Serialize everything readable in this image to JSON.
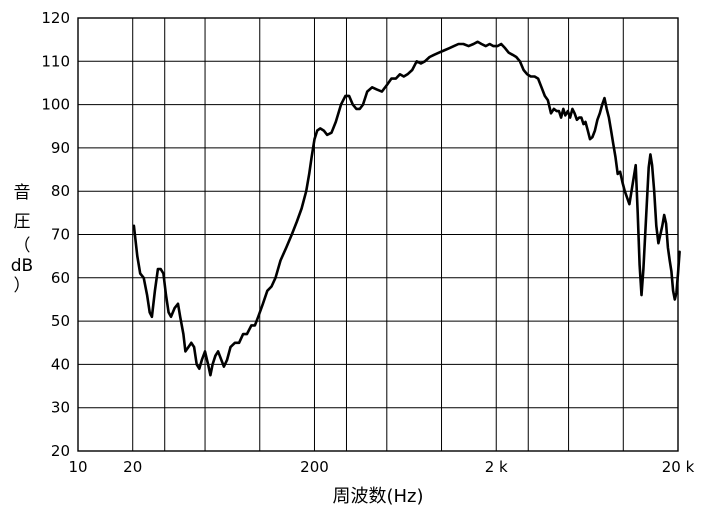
{
  "chart_data": {
    "type": "line",
    "title": "",
    "xlabel": "周波数(Hz)",
    "ylabel_chars": [
      "音",
      "圧",
      "（",
      "dB",
      "）"
    ],
    "x_scale": "log",
    "xlim": [
      10,
      20000
    ],
    "ylim": [
      20,
      120
    ],
    "grid": true,
    "y_ticks": [
      "20",
      "30",
      "40",
      "50",
      "60",
      "70",
      "80",
      "90",
      "100",
      "110",
      "120"
    ],
    "x_tick_labels": [
      {
        "value": 10,
        "label": "10"
      },
      {
        "value": 20,
        "label": "20"
      },
      {
        "value": 200,
        "label": "200"
      },
      {
        "value": 2000,
        "label": "2 k"
      },
      {
        "value": 20000,
        "label": "20 k"
      }
    ],
    "x_gridlines": [
      20,
      30,
      50,
      100,
      200,
      300,
      500,
      1000,
      2000,
      3000,
      5000,
      10000
    ],
    "series": [
      {
        "name": "",
        "color": "#000000",
        "points": [
          [
            20.3,
            72
          ],
          [
            21.2,
            65
          ],
          [
            22,
            61
          ],
          [
            23,
            60
          ],
          [
            24,
            56
          ],
          [
            24.8,
            52
          ],
          [
            25.5,
            51
          ],
          [
            26.5,
            57
          ],
          [
            27.5,
            62
          ],
          [
            28.5,
            62
          ],
          [
            29.5,
            61
          ],
          [
            30.5,
            56
          ],
          [
            31.5,
            52
          ],
          [
            32.5,
            51
          ],
          [
            34,
            53
          ],
          [
            35.5,
            54
          ],
          [
            36.5,
            51
          ],
          [
            38,
            47
          ],
          [
            39,
            43
          ],
          [
            40.5,
            44
          ],
          [
            42,
            45
          ],
          [
            43.5,
            44
          ],
          [
            45,
            40
          ],
          [
            46.5,
            39
          ],
          [
            48,
            41
          ],
          [
            50,
            43
          ],
          [
            52,
            40
          ],
          [
            53.5,
            37.5
          ],
          [
            55,
            40
          ],
          [
            57,
            42
          ],
          [
            59,
            43
          ],
          [
            61.5,
            41
          ],
          [
            63.5,
            39.5
          ],
          [
            66,
            41
          ],
          [
            69,
            44
          ],
          [
            73,
            45
          ],
          [
            77,
            45
          ],
          [
            81,
            47
          ],
          [
            85,
            47
          ],
          [
            90,
            49
          ],
          [
            94,
            49
          ],
          [
            98,
            51
          ],
          [
            104,
            54
          ],
          [
            110,
            57
          ],
          [
            116,
            58
          ],
          [
            122,
            60
          ],
          [
            130,
            64
          ],
          [
            140,
            67
          ],
          [
            150,
            70
          ],
          [
            160,
            73
          ],
          [
            170,
            76
          ],
          [
            180,
            80
          ],
          [
            187,
            84
          ],
          [
            193,
            88
          ],
          [
            200,
            92
          ],
          [
            207,
            94
          ],
          [
            215,
            94.5
          ],
          [
            225,
            94
          ],
          [
            235,
            93
          ],
          [
            248,
            93.5
          ],
          [
            262,
            96
          ],
          [
            280,
            100
          ],
          [
            296,
            102
          ],
          [
            310,
            102
          ],
          [
            325,
            100
          ],
          [
            340,
            99
          ],
          [
            355,
            99
          ],
          [
            370,
            100
          ],
          [
            390,
            103
          ],
          [
            415,
            104
          ],
          [
            440,
            103.5
          ],
          [
            470,
            103
          ],
          [
            500,
            104.5
          ],
          [
            530,
            106
          ],
          [
            560,
            106
          ],
          [
            590,
            107
          ],
          [
            620,
            106.5
          ],
          [
            650,
            107
          ],
          [
            690,
            108
          ],
          [
            730,
            110
          ],
          [
            770,
            109.5
          ],
          [
            810,
            110
          ],
          [
            860,
            111
          ],
          [
            910,
            111.5
          ],
          [
            970,
            112
          ],
          [
            1030,
            112.5
          ],
          [
            1100,
            113
          ],
          [
            1170,
            113.5
          ],
          [
            1240,
            114
          ],
          [
            1320,
            114
          ],
          [
            1410,
            113.5
          ],
          [
            1500,
            114
          ],
          [
            1580,
            114.5
          ],
          [
            1660,
            114
          ],
          [
            1750,
            113.5
          ],
          [
            1840,
            114
          ],
          [
            1930,
            113.5
          ],
          [
            2030,
            113.5
          ],
          [
            2130,
            114
          ],
          [
            2240,
            113
          ],
          [
            2340,
            112
          ],
          [
            2460,
            111.5
          ],
          [
            2580,
            111
          ],
          [
            2700,
            110
          ],
          [
            2830,
            108
          ],
          [
            2960,
            107
          ],
          [
            3100,
            106.5
          ],
          [
            3250,
            106.5
          ],
          [
            3400,
            106
          ],
          [
            3550,
            104
          ],
          [
            3700,
            102
          ],
          [
            3850,
            101
          ],
          [
            4000,
            98
          ],
          [
            4150,
            99
          ],
          [
            4300,
            98.5
          ],
          [
            4430,
            98.5
          ],
          [
            4550,
            97
          ],
          [
            4680,
            99
          ],
          [
            4800,
            97.5
          ],
          [
            4950,
            98.5
          ],
          [
            5100,
            97
          ],
          [
            5250,
            99
          ],
          [
            5400,
            98
          ],
          [
            5560,
            96.5
          ],
          [
            5720,
            97
          ],
          [
            5880,
            97
          ],
          [
            6040,
            95.5
          ],
          [
            6200,
            96
          ],
          [
            6380,
            94
          ],
          [
            6560,
            92
          ],
          [
            6760,
            92.5
          ],
          [
            6980,
            94
          ],
          [
            7200,
            96.5
          ],
          [
            7430,
            98
          ],
          [
            7660,
            100
          ],
          [
            7880,
            101.5
          ],
          [
            8100,
            99
          ],
          [
            8330,
            97
          ],
          [
            8570,
            94
          ],
          [
            8800,
            91
          ],
          [
            9050,
            88
          ],
          [
            9320,
            84
          ],
          [
            9600,
            84.5
          ],
          [
            9900,
            82
          ],
          [
            10200,
            80
          ],
          [
            10500,
            78.5
          ],
          [
            10800,
            77
          ],
          [
            11100,
            80
          ],
          [
            11400,
            83
          ],
          [
            11700,
            86
          ],
          [
            12000,
            75
          ],
          [
            12300,
            63
          ],
          [
            12600,
            56
          ],
          [
            12900,
            62
          ],
          [
            13200,
            70
          ],
          [
            13500,
            78
          ],
          [
            13800,
            85.5
          ],
          [
            14100,
            88.5
          ],
          [
            14400,
            86
          ],
          [
            14800,
            80
          ],
          [
            15200,
            72
          ],
          [
            15600,
            68
          ],
          [
            16000,
            70
          ],
          [
            16400,
            72
          ],
          [
            16800,
            74.5
          ],
          [
            17200,
            72.5
          ],
          [
            17600,
            67
          ],
          [
            18000,
            64
          ],
          [
            18400,
            61.5
          ],
          [
            18800,
            57
          ],
          [
            19200,
            55
          ],
          [
            19600,
            56.5
          ],
          [
            20000,
            61
          ],
          [
            20400,
            66
          ]
        ]
      }
    ]
  }
}
